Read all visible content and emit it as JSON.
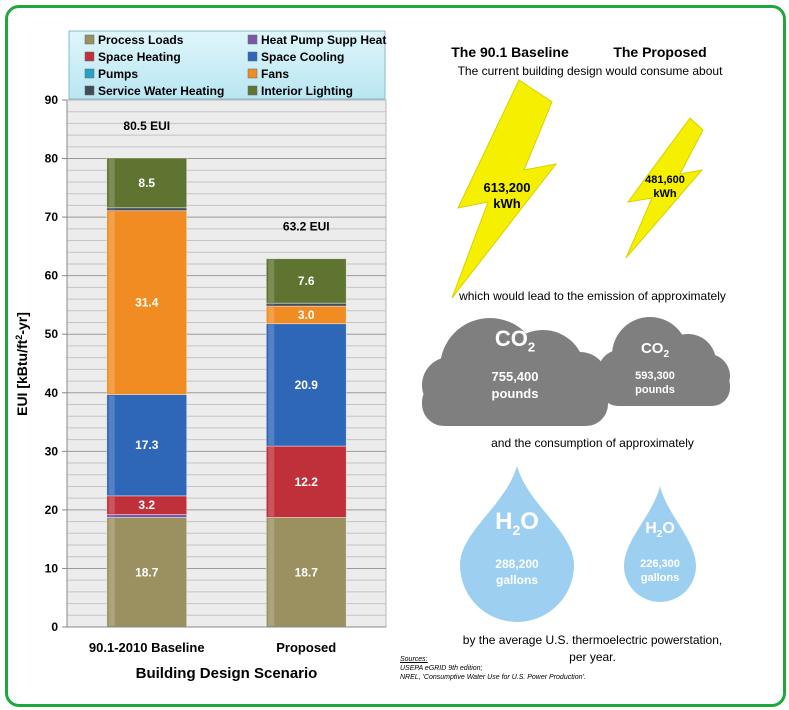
{
  "chart_data": {
    "type": "bar",
    "stacked": true,
    "categories": [
      "90.1-2010 Baseline",
      "Proposed"
    ],
    "series": [
      {
        "name": "Process Loads",
        "values": [
          18.7,
          18.7
        ],
        "labels": [
          "18.7",
          "18.7"
        ],
        "color": "#9a9060"
      },
      {
        "name": "Heat Pump Supp Heat",
        "values": [
          0.5,
          0
        ],
        "labels": [
          "",
          ""
        ],
        "color": "#7a58a8"
      },
      {
        "name": "Space Heating",
        "values": [
          3.2,
          12.2
        ],
        "labels": [
          "3.2",
          "12.2"
        ],
        "color": "#c0303a"
      },
      {
        "name": "Space Cooling",
        "values": [
          17.3,
          20.9
        ],
        "labels": [
          "17.3",
          "20.9"
        ],
        "color": "#2e66b8"
      },
      {
        "name": "Pumps",
        "values": [
          0,
          0
        ],
        "labels": [
          "",
          ""
        ],
        "color": "#2aa0c8"
      },
      {
        "name": "Fans",
        "values": [
          31.4,
          3.0
        ],
        "labels": [
          "31.4",
          "3.0"
        ],
        "color": "#f08c22"
      },
      {
        "name": "Service Water Heating",
        "values": [
          0.5,
          0.5
        ],
        "labels": [
          "",
          ""
        ],
        "color": "#404a58"
      },
      {
        "name": "Interior Lighting",
        "values": [
          8.5,
          7.6
        ],
        "labels": [
          "8.5",
          "7.6"
        ],
        "color": "#5e7430"
      }
    ],
    "totals": [
      "80.5 EUI",
      "63.2 EUI"
    ],
    "ylim": [
      0,
      90
    ],
    "yticks": [
      "0",
      "10",
      "20",
      "30",
      "40",
      "50",
      "60",
      "70",
      "80",
      "90"
    ],
    "ylabel": "EUI [kBtu/ft²-yr]",
    "xlabel": "Building Design Scenario",
    "grid": true,
    "legend_position": "top"
  },
  "infographic": {
    "header_baseline": "The 90.1 Baseline",
    "header_proposed": "The Proposed",
    "line1": "The current building design would consume about",
    "kwh_baseline_value": "613,200",
    "kwh_baseline_unit": "kWh",
    "kwh_proposed_value": "481,600",
    "kwh_proposed_unit": "kWh",
    "line2": "which would lead to the emission of approximately",
    "co2_baseline_value": "755,400",
    "co2_baseline_unit": "pounds",
    "co2_proposed_value": "593,300",
    "co2_proposed_unit": "pounds",
    "line3": "and the consumption of approximately",
    "water_baseline_value": "288,200",
    "water_baseline_unit": "gallons",
    "water_proposed_value": "226,300",
    "water_proposed_unit": "gallons",
    "line4a": "by the average U.S. thermoelectric powerstation,",
    "line4b": "per year.",
    "sources_title": "Sources:",
    "source1": "USEPA eGRID 9th edition;",
    "source2": "NREL, 'Consumptive Water Use for U.S. Power Production'.",
    "colors": {
      "bolt": "#f5f000",
      "cloud": "#7f7f7f",
      "drop": "#9ccff0",
      "border": "#1fa83a"
    }
  }
}
